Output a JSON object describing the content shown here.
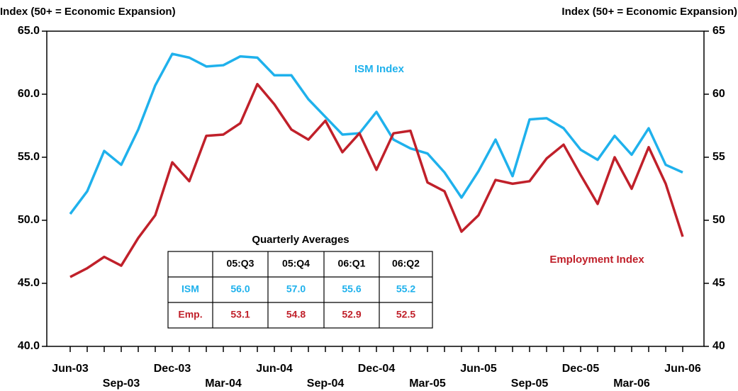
{
  "chart_data": {
    "type": "line",
    "y_label": "Index (50+ = Economic Expansion)",
    "y2_label": "Index (50+ = Economic Expansion)",
    "categories": [
      "Jun-03",
      null,
      null,
      "Sep-03",
      null,
      null,
      "Dec-03",
      null,
      null,
      "Mar-04",
      null,
      null,
      "Jun-04",
      null,
      null,
      "Sep-04",
      null,
      null,
      "Dec-04",
      null,
      null,
      "Mar-05",
      null,
      null,
      "Jun-05",
      null,
      null,
      "Sep-05",
      null,
      null,
      "Dec-05",
      null,
      null,
      "Mar-06",
      null,
      null,
      "Jun-06"
    ],
    "series": [
      {
        "name": "ISM Index",
        "color": "#1fb1ec",
        "values": [
          50.5,
          52.3,
          55.5,
          54.4,
          57.2,
          60.7,
          63.2,
          62.9,
          62.2,
          62.3,
          63.0,
          62.9,
          61.5,
          61.5,
          59.6,
          58.2,
          56.8,
          56.9,
          58.6,
          56.4,
          55.7,
          55.3,
          53.8,
          51.8,
          53.9,
          56.4,
          53.5,
          58.0,
          58.1,
          57.3,
          55.6,
          54.8,
          56.7,
          55.2,
          57.3,
          54.4,
          53.8
        ]
      },
      {
        "name": "Employment Index",
        "color": "#c0202a",
        "values": [
          45.5,
          46.2,
          47.1,
          46.4,
          48.6,
          50.4,
          54.6,
          53.1,
          56.7,
          56.8,
          57.7,
          60.8,
          59.2,
          57.2,
          56.4,
          57.9,
          55.4,
          56.9,
          54.0,
          56.9,
          57.1,
          53.0,
          52.3,
          49.1,
          50.4,
          53.2,
          52.9,
          53.1,
          54.9,
          56.0,
          53.6,
          51.3,
          55.0,
          52.5,
          55.8,
          52.9,
          48.7
        ],
        "axis": "y2"
      }
    ],
    "ylim": [
      40,
      65
    ],
    "yticks": [
      {
        "value": 40,
        "label": "40.0"
      },
      {
        "value": 45,
        "label": "45.0"
      },
      {
        "value": 50,
        "label": "50.0"
      },
      {
        "value": 55,
        "label": "55.0"
      },
      {
        "value": 60,
        "label": "60.0"
      },
      {
        "value": 65,
        "label": "65.0"
      }
    ],
    "y2lim": [
      40,
      65
    ],
    "y2ticks": [
      40,
      45,
      50,
      55,
      60,
      65
    ],
    "grid": false,
    "table": {
      "title": "Quarterly Averages",
      "columns": [
        "05:Q3",
        "05:Q4",
        "06:Q1",
        "06:Q2"
      ],
      "rows": [
        {
          "label": "ISM",
          "cells": [
            "56.0",
            "57.0",
            "55.6",
            "55.2"
          ]
        },
        {
          "label": "Emp.",
          "cells": [
            "53.1",
            "54.8",
            "52.9",
            "52.5"
          ]
        }
      ]
    }
  }
}
